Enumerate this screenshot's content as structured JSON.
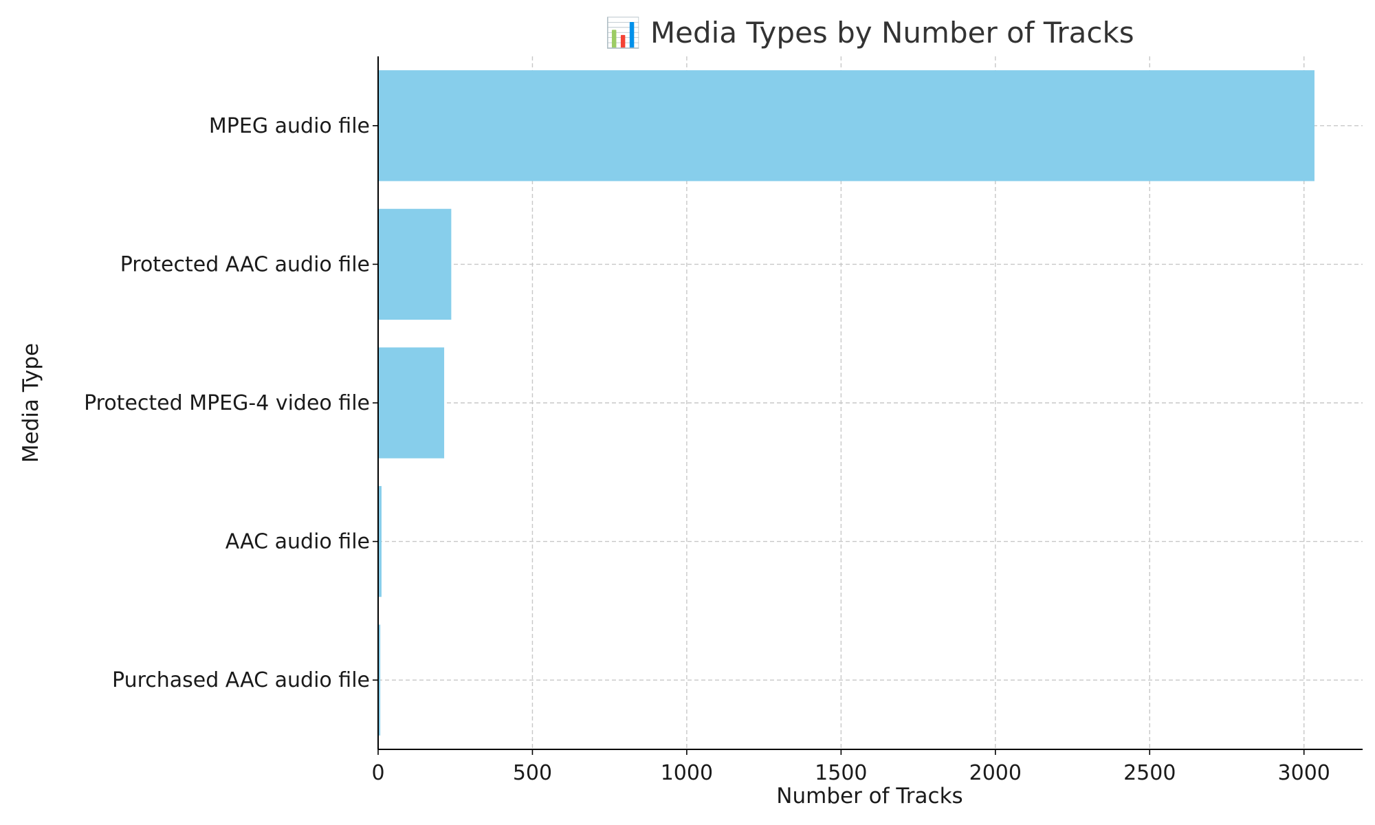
{
  "chart_data": {
    "type": "bar",
    "orientation": "horizontal",
    "title": "📊 Media Types by Number of Tracks",
    "xlabel": "Number of Tracks",
    "ylabel": "Media Type",
    "categories": [
      "MPEG audio file",
      "Protected AAC audio file",
      "Protected MPEG-4 video file",
      "AAC audio file",
      "Purchased AAC audio file"
    ],
    "values": [
      3034,
      237,
      214,
      11,
      7
    ],
    "xlim": [
      0,
      3190
    ],
    "xticks": [
      0,
      500,
      1000,
      1500,
      2000,
      2500,
      3000
    ],
    "grid": true,
    "bar_color": "#87ceeb"
  }
}
